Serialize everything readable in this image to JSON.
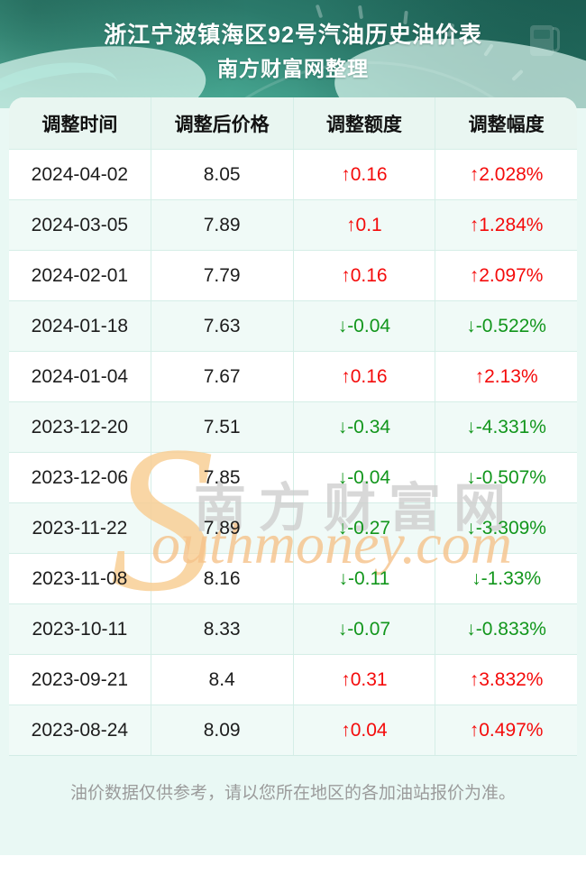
{
  "header": {
    "title": "浙江宁波镇海区92号汽油历史油价表",
    "subtitle": "南方财富网整理"
  },
  "watermark": {
    "swoosh_letter": "S",
    "cjk_text": "南方财富网",
    "latin_text": "outhmoney.com"
  },
  "footer": {
    "disclaimer": "油价数据仅供参考，请以您所在地区的各加油站报价为准。"
  },
  "colors": {
    "banner_teal_dark": "#1f6458",
    "banner_teal_light": "#6fcdb8",
    "page_mint": "#e9f8f4",
    "table_header_bg": "#e9f6f1",
    "row_alt_bg": "#f0faf7",
    "divider": "#d5eee7",
    "up_red": "#f40b0b",
    "down_green": "#12961c",
    "watermark_orange": "#f6c38a",
    "watermark_gray": "#cccccc"
  },
  "chart_data": {
    "type": "table",
    "title": "浙江宁波镇海区92号汽油历史油价表",
    "subtitle": "南方财富网整理",
    "columns": [
      "调整时间",
      "调整后价格",
      "调整额度",
      "调整幅度"
    ],
    "rows": [
      {
        "date": "2024-04-02",
        "price": "8.05",
        "change": "↑0.16",
        "pct": "↑2.028%",
        "trend": "up"
      },
      {
        "date": "2024-03-05",
        "price": "7.89",
        "change": "↑0.1",
        "pct": "↑1.284%",
        "trend": "up"
      },
      {
        "date": "2024-02-01",
        "price": "7.79",
        "change": "↑0.16",
        "pct": "↑2.097%",
        "trend": "up"
      },
      {
        "date": "2024-01-18",
        "price": "7.63",
        "change": "↓-0.04",
        "pct": "↓-0.522%",
        "trend": "down"
      },
      {
        "date": "2024-01-04",
        "price": "7.67",
        "change": "↑0.16",
        "pct": "↑2.13%",
        "trend": "up"
      },
      {
        "date": "2023-12-20",
        "price": "7.51",
        "change": "↓-0.34",
        "pct": "↓-4.331%",
        "trend": "down"
      },
      {
        "date": "2023-12-06",
        "price": "7.85",
        "change": "↓-0.04",
        "pct": "↓-0.507%",
        "trend": "down"
      },
      {
        "date": "2023-11-22",
        "price": "7.89",
        "change": "↓-0.27",
        "pct": "↓-3.309%",
        "trend": "down"
      },
      {
        "date": "2023-11-08",
        "price": "8.16",
        "change": "↓-0.11",
        "pct": "↓-1.33%",
        "trend": "down"
      },
      {
        "date": "2023-10-11",
        "price": "8.33",
        "change": "↓-0.07",
        "pct": "↓-0.833%",
        "trend": "down"
      },
      {
        "date": "2023-09-21",
        "price": "8.4",
        "change": "↑0.31",
        "pct": "↑3.832%",
        "trend": "up"
      },
      {
        "date": "2023-08-24",
        "price": "8.09",
        "change": "↑0.04",
        "pct": "↑0.497%",
        "trend": "up"
      }
    ]
  }
}
